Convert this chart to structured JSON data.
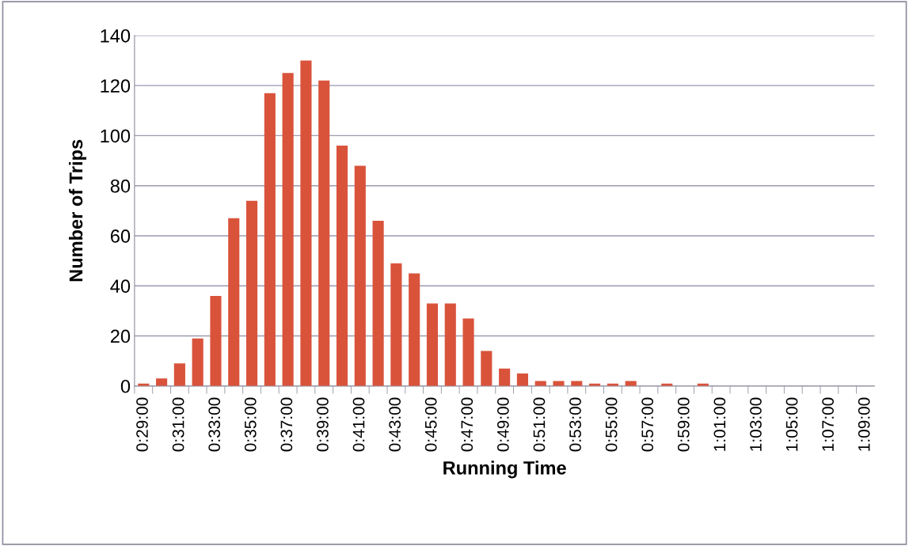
{
  "chart_data": {
    "type": "bar",
    "xlabel": "Running Time",
    "ylabel": "Number of Trips",
    "categories": [
      "0:29:00",
      null,
      "0:31:00",
      null,
      "0:33:00",
      null,
      "0:35:00",
      null,
      "0:37:00",
      null,
      "0:39:00",
      null,
      "0:41:00",
      null,
      "0:43:00",
      null,
      "0:45:00",
      null,
      "0:47:00",
      null,
      "0:49:00",
      null,
      "0:51:00",
      null,
      "0:53:00",
      null,
      "0:55:00",
      null,
      "0:57:00",
      null,
      "0:59:00",
      null,
      "1:01:00",
      null,
      "1:03:00",
      null,
      "1:05:00",
      null,
      "1:07:00",
      null,
      "1:09:00"
    ],
    "values": [
      1,
      3,
      9,
      19,
      36,
      67,
      74,
      117,
      125,
      130,
      122,
      96,
      88,
      66,
      49,
      45,
      33,
      33,
      27,
      14,
      7,
      5,
      2,
      2,
      2,
      1,
      1,
      2,
      0,
      1,
      0,
      1,
      0,
      0,
      0,
      0,
      0,
      0,
      0,
      0,
      0
    ],
    "color": "#d9533b",
    "ylim": [
      0,
      140
    ],
    "yticks": [
      0,
      20,
      40,
      60,
      80,
      100,
      120,
      140
    ],
    "grid": "y",
    "legend": false
  }
}
